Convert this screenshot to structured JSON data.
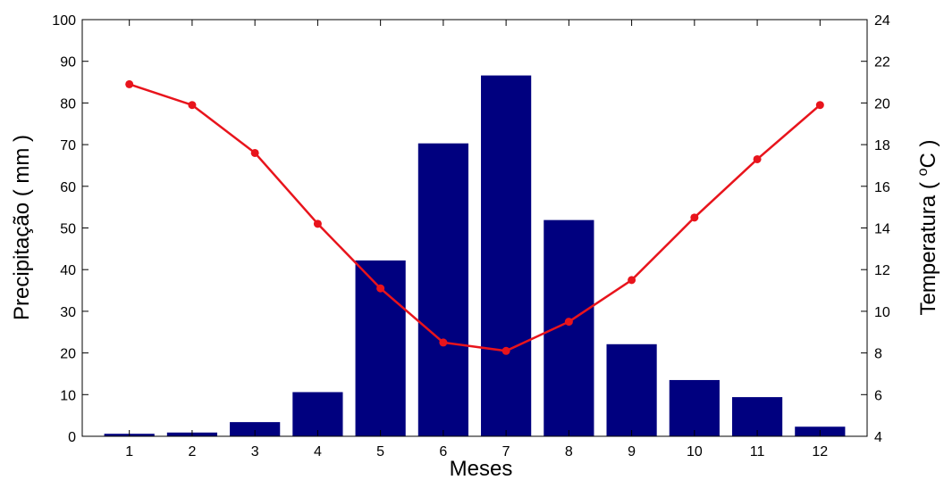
{
  "chart_data": {
    "type": "bar",
    "xlabel": "Meses",
    "ylabel": "Precipitação ( mm )",
    "y2label": "Temperatura ( ºC )",
    "y2label_parts": {
      "prefix": "Temperatura ( ",
      "sup": "o",
      "suffix": "C )"
    },
    "categories": [
      "1",
      "2",
      "3",
      "4",
      "5",
      "6",
      "7",
      "8",
      "9",
      "10",
      "11",
      "12"
    ],
    "ylim": [
      0,
      100
    ],
    "yticks": [
      "0",
      "10",
      "20",
      "30",
      "40",
      "50",
      "60",
      "70",
      "80",
      "90",
      "100"
    ],
    "y2lim": [
      4,
      24
    ],
    "y2ticks": [
      "4",
      "6",
      "8",
      "10",
      "12",
      "14",
      "16",
      "18",
      "20",
      "22",
      "24"
    ],
    "grid": false,
    "series": [
      {
        "axis": "left",
        "type": "bar",
        "color": "#00007f",
        "values": [
          0.6,
          0.9,
          3.4,
          10.6,
          42.2,
          70.3,
          86.6,
          51.9,
          22.1,
          13.5,
          9.4,
          2.3
        ]
      },
      {
        "axis": "right",
        "type": "line",
        "color": "#e8141c",
        "values": [
          20.9,
          19.9,
          17.6,
          14.2,
          11.1,
          8.5,
          8.1,
          9.5,
          11.5,
          14.5,
          17.3,
          19.9
        ]
      }
    ]
  }
}
